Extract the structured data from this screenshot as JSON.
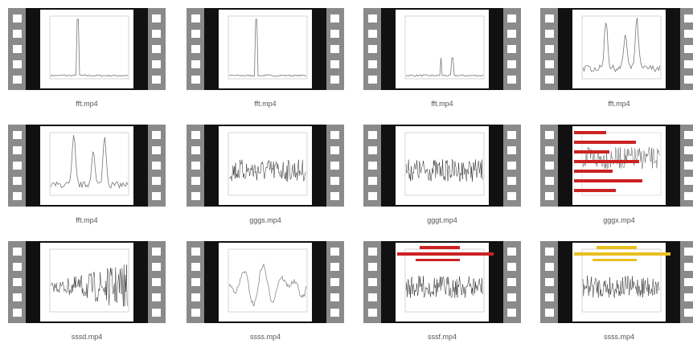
{
  "files": [
    {
      "name": "fft.mp4"
    },
    {
      "name": "fft.mp4"
    },
    {
      "name": "fft.mp4"
    },
    {
      "name": "fft.mp4"
    },
    {
      "name": "fft.mp4"
    },
    {
      "name": "gggs.mp4"
    },
    {
      "name": "gggt.mp4"
    },
    {
      "name": "gggx.mp4"
    },
    {
      "name": "sssd.mp4"
    },
    {
      "name": "ssss.mp4"
    },
    {
      "name": "sssf.mp4"
    },
    {
      "name": "ssss.mp4"
    }
  ]
}
